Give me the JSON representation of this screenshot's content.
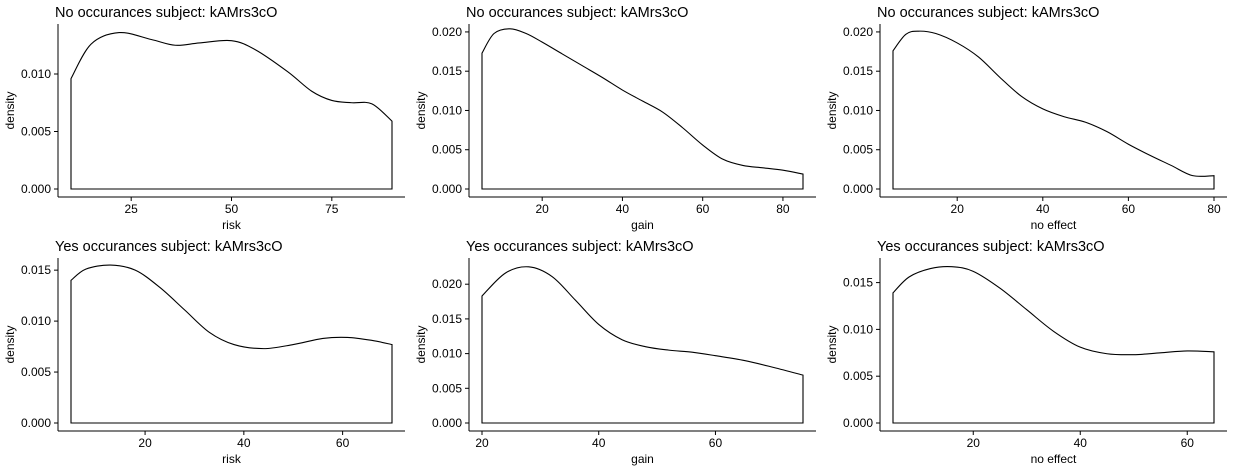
{
  "chart_data": [
    {
      "type": "area",
      "title": "No occurances subject:  kAMrs3cO",
      "xlabel": "risk",
      "ylabel": "density",
      "xlim": [
        10,
        90
      ],
      "ylim": [
        0,
        0.014
      ],
      "xticks": [
        25,
        50,
        75
      ],
      "yticks": [
        0.0,
        0.005,
        0.01
      ],
      "ytick_labels": [
        "0.000",
        "0.005",
        "0.010"
      ],
      "series": [
        {
          "x": [
            10,
            15,
            22,
            30,
            36,
            42,
            50,
            56,
            64,
            70,
            75,
            80,
            85,
            90
          ],
          "values": [
            0.0096,
            0.0126,
            0.0136,
            0.013,
            0.0125,
            0.0127,
            0.0129,
            0.0121,
            0.0102,
            0.0085,
            0.0077,
            0.0075,
            0.0074,
            0.0059
          ]
        }
      ]
    },
    {
      "type": "area",
      "title": "No occurances subject:  kAMrs3cO",
      "xlabel": "gain",
      "ylabel": "density",
      "xlim": [
        5,
        85
      ],
      "ylim": [
        0,
        0.0205
      ],
      "xticks": [
        20,
        40,
        60,
        80
      ],
      "yticks": [
        0.0,
        0.005,
        0.01,
        0.015,
        0.02
      ],
      "ytick_labels": [
        "0.000",
        "0.005",
        "0.010",
        "0.015",
        "0.020"
      ],
      "series": [
        {
          "x": [
            5,
            8,
            12,
            16,
            20,
            25,
            30,
            35,
            40,
            45,
            50,
            55,
            60,
            65,
            70,
            75,
            80,
            85
          ],
          "values": [
            0.0173,
            0.0198,
            0.0204,
            0.0198,
            0.0187,
            0.0172,
            0.0157,
            0.0142,
            0.0126,
            0.0112,
            0.0098,
            0.0078,
            0.0056,
            0.0038,
            0.003,
            0.0027,
            0.0024,
            0.0019
          ]
        }
      ]
    },
    {
      "type": "area",
      "title": "No occurances subject:  kAMrs3cO",
      "xlabel": "no effect",
      "ylabel": "density",
      "xlim": [
        5,
        80
      ],
      "ylim": [
        0,
        0.0205
      ],
      "xticks": [
        20,
        40,
        60,
        80
      ],
      "yticks": [
        0.0,
        0.005,
        0.01,
        0.015,
        0.02
      ],
      "ytick_labels": [
        "0.000",
        "0.005",
        "0.010",
        "0.015",
        "0.020"
      ],
      "series": [
        {
          "x": [
            5,
            8,
            11,
            15,
            20,
            25,
            30,
            35,
            40,
            45,
            50,
            55,
            60,
            65,
            70,
            75,
            80
          ],
          "values": [
            0.0176,
            0.0197,
            0.0201,
            0.0198,
            0.0186,
            0.0168,
            0.0142,
            0.0118,
            0.0102,
            0.0092,
            0.0085,
            0.0073,
            0.0057,
            0.0043,
            0.003,
            0.0017,
            0.0017
          ]
        }
      ]
    },
    {
      "type": "area",
      "title": "Yes occurances subject:  kAMrs3cO",
      "xlabel": "risk",
      "ylabel": "density",
      "xlim": [
        5,
        70
      ],
      "ylim": [
        0,
        0.0158
      ],
      "xticks": [
        20,
        40,
        60
      ],
      "yticks": [
        0.0,
        0.005,
        0.01,
        0.015
      ],
      "ytick_labels": [
        "0.000",
        "0.005",
        "0.010",
        "0.015"
      ],
      "series": [
        {
          "x": [
            5,
            8,
            13,
            18,
            23,
            28,
            33,
            38,
            44,
            50,
            56,
            61,
            66,
            70
          ],
          "values": [
            0.014,
            0.0151,
            0.0155,
            0.015,
            0.0133,
            0.0111,
            0.0089,
            0.0077,
            0.0073,
            0.0077,
            0.0083,
            0.0084,
            0.0081,
            0.0077
          ]
        }
      ]
    },
    {
      "type": "area",
      "title": "Yes occurances subject:  kAMrs3cO",
      "xlabel": "gain",
      "ylabel": "density",
      "xlim": [
        20,
        75
      ],
      "ylim": [
        0,
        0.0232
      ],
      "xticks": [
        20,
        40,
        60
      ],
      "yticks": [
        0.0,
        0.005,
        0.01,
        0.015,
        0.02
      ],
      "ytick_labels": [
        "0.000",
        "0.005",
        "0.010",
        "0.015",
        "0.020"
      ],
      "series": [
        {
          "x": [
            20,
            24,
            28,
            32,
            36,
            40,
            44,
            48,
            52,
            56,
            60,
            65,
            70,
            75
          ],
          "values": [
            0.0183,
            0.0216,
            0.0225,
            0.0211,
            0.0177,
            0.0142,
            0.012,
            0.011,
            0.0105,
            0.0102,
            0.0097,
            0.009,
            0.008,
            0.0069
          ]
        }
      ]
    },
    {
      "type": "area",
      "title": "Yes occurances subject:  kAMrs3cO",
      "xlabel": "no effect",
      "ylabel": "density",
      "xlim": [
        5,
        65
      ],
      "ylim": [
        0,
        0.0172
      ],
      "xticks": [
        20,
        40,
        60
      ],
      "yticks": [
        0.0,
        0.005,
        0.01,
        0.015
      ],
      "ytick_labels": [
        "0.000",
        "0.005",
        "0.010",
        "0.015"
      ],
      "series": [
        {
          "x": [
            5,
            8,
            12,
            16,
            20,
            25,
            30,
            35,
            40,
            45,
            50,
            55,
            60,
            65
          ],
          "values": [
            0.0139,
            0.0156,
            0.0165,
            0.0167,
            0.0162,
            0.0144,
            0.0121,
            0.0098,
            0.0081,
            0.0074,
            0.0073,
            0.0075,
            0.0077,
            0.0076
          ]
        }
      ]
    }
  ]
}
